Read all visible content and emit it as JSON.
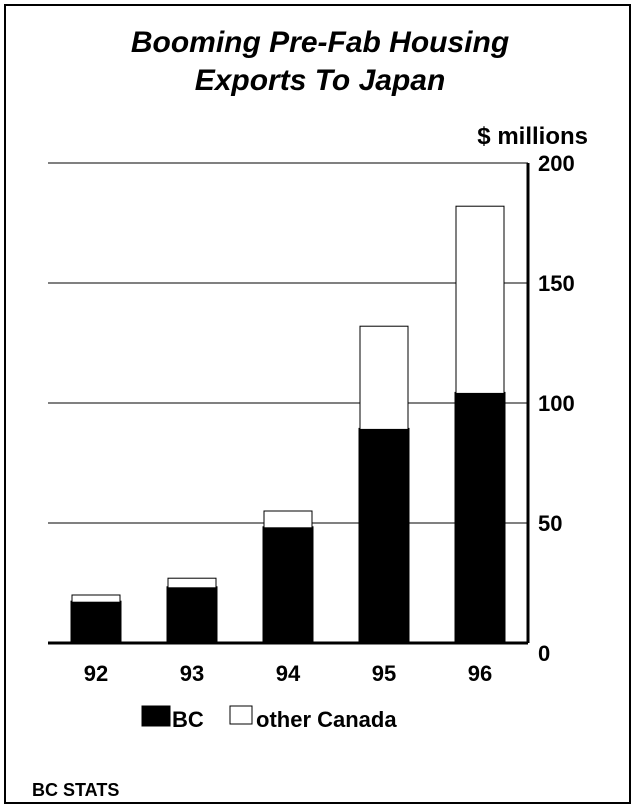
{
  "chart_data": {
    "type": "bar",
    "stacked": true,
    "title_lines": [
      "Booming Pre-Fab Housing",
      "Exports To Japan"
    ],
    "ylabel": "$ millions",
    "ylim": [
      0,
      200
    ],
    "yticks": [
      0,
      50,
      100,
      150,
      200
    ],
    "y_axis_side": "right",
    "grid": true,
    "categories": [
      "92",
      "93",
      "94",
      "95",
      "96"
    ],
    "series": [
      {
        "name": "BC",
        "values": [
          17,
          23,
          48,
          89,
          104
        ],
        "color": "#000000"
      },
      {
        "name": "other Canada",
        "values": [
          3,
          4,
          7,
          43,
          78
        ],
        "color": "#ffffff"
      }
    ],
    "legend_position": "bottom"
  },
  "footer": {
    "source": "BC STATS"
  }
}
